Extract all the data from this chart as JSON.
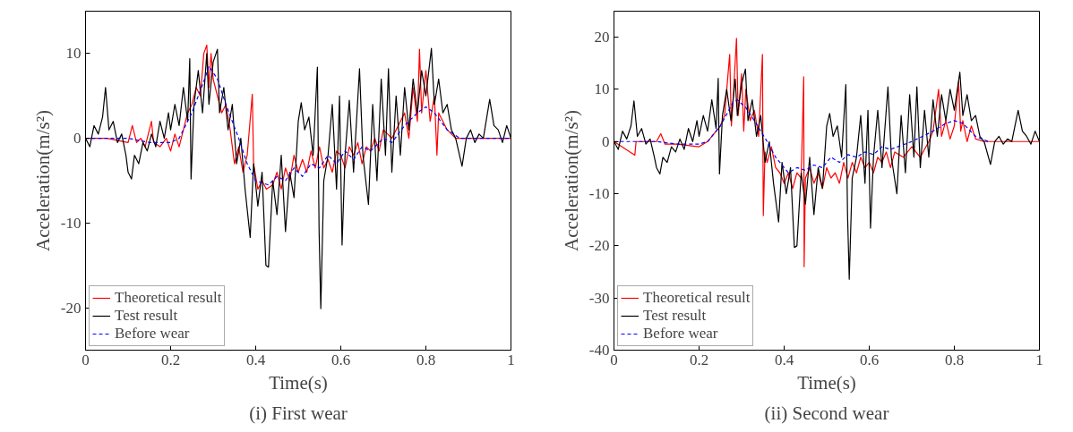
{
  "chart_data": [
    {
      "type": "line",
      "xlabel": "Time(s)",
      "ylabel": "Acceleration(m/s²)",
      "annotations": [
        "(i) First wear"
      ],
      "xlim": [
        0,
        1
      ],
      "ylim": [
        -25,
        15
      ],
      "xticks": [
        0,
        0.2,
        0.4,
        0.6,
        0.8,
        1
      ],
      "yticks": [
        -20,
        -10,
        0,
        10
      ],
      "grid": false,
      "legend": "bottom left",
      "series": [
        {
          "name": "Theoretical result",
          "color": "#ff0000",
          "line_style": "solid",
          "x": [
            0,
            0.05,
            0.1,
            0.11,
            0.12,
            0.13,
            0.14,
            0.155,
            0.16,
            0.175,
            0.19,
            0.2,
            0.21,
            0.22,
            0.23,
            0.24,
            0.25,
            0.26,
            0.27,
            0.278,
            0.285,
            0.29,
            0.295,
            0.3,
            0.31,
            0.32,
            0.33,
            0.34,
            0.35,
            0.36,
            0.37,
            0.38,
            0.392,
            0.395,
            0.405,
            0.415,
            0.425,
            0.44,
            0.45,
            0.46,
            0.47,
            0.48,
            0.49,
            0.5,
            0.51,
            0.52,
            0.53,
            0.54,
            0.55,
            0.56,
            0.57,
            0.58,
            0.59,
            0.6,
            0.61,
            0.62,
            0.63,
            0.64,
            0.65,
            0.66,
            0.67,
            0.68,
            0.69,
            0.7,
            0.72,
            0.74,
            0.75,
            0.76,
            0.77,
            0.78,
            0.785,
            0.79,
            0.8,
            0.81,
            0.82,
            0.826,
            0.83,
            0.84,
            0.85,
            0.87,
            0.9,
            1
          ],
          "values": [
            0,
            0,
            -0.5,
            1.5,
            -0.5,
            0,
            -1,
            2,
            -0.5,
            -1,
            0,
            -1.5,
            0.5,
            -1,
            1,
            3,
            4,
            6,
            5,
            10,
            11,
            6,
            10,
            7,
            5,
            3,
            4,
            1,
            -3,
            -1,
            -4,
            -2,
            5.2,
            -3,
            -6,
            -5,
            -6,
            -5.5,
            -4,
            -6,
            -3.5,
            -5,
            -2,
            -4,
            -2.5,
            -4,
            -1.5,
            -3.5,
            -1,
            -3.5,
            -2.5,
            -4,
            -1.5,
            -2,
            -3.5,
            -1,
            -2,
            -0.5,
            -3,
            -1,
            -1.5,
            0,
            -1.5,
            1,
            0,
            2,
            3,
            0,
            6,
            2,
            10.5,
            3,
            8,
            2,
            5,
            -2,
            3,
            2,
            1,
            0,
            0,
            0
          ]
        },
        {
          "name": "Test result",
          "color": "#000000",
          "line_style": "solid",
          "x": [
            0,
            0.01,
            0.02,
            0.03,
            0.04,
            0.047,
            0.055,
            0.065,
            0.075,
            0.085,
            0.095,
            0.1,
            0.108,
            0.115,
            0.125,
            0.135,
            0.145,
            0.155,
            0.165,
            0.175,
            0.185,
            0.195,
            0.2,
            0.21,
            0.22,
            0.23,
            0.24,
            0.245,
            0.248,
            0.255,
            0.265,
            0.275,
            0.285,
            0.29,
            0.3,
            0.31,
            0.315,
            0.325,
            0.335,
            0.345,
            0.355,
            0.365,
            0.375,
            0.387,
            0.395,
            0.405,
            0.415,
            0.424,
            0.43,
            0.44,
            0.45,
            0.46,
            0.47,
            0.48,
            0.49,
            0.5,
            0.507,
            0.515,
            0.525,
            0.535,
            0.545,
            0.549,
            0.553,
            0.56,
            0.57,
            0.58,
            0.59,
            0.597,
            0.603,
            0.61,
            0.62,
            0.63,
            0.644,
            0.652,
            0.665,
            0.675,
            0.685,
            0.695,
            0.705,
            0.712,
            0.72,
            0.73,
            0.74,
            0.75,
            0.76,
            0.77,
            0.78,
            0.79,
            0.8,
            0.813,
            0.82,
            0.83,
            0.84,
            0.85,
            0.86,
            0.87,
            0.885,
            0.895,
            0.905,
            0.915,
            0.925,
            0.935,
            0.95,
            0.96,
            0.97,
            0.98,
            0.99,
            1
          ],
          "values": [
            0,
            -1,
            1.5,
            0.5,
            2.5,
            6,
            1,
            2,
            -0.5,
            0.5,
            -2,
            -4,
            -4.8,
            -2,
            -3,
            -0.5,
            -1.5,
            0.5,
            -1,
            2,
            0,
            3,
            1,
            4,
            1.5,
            6,
            2,
            9.4,
            -4.8,
            4,
            8,
            3,
            10,
            4,
            9,
            10.5,
            3,
            6,
            1,
            4,
            -3,
            0,
            -6,
            -11.7,
            -3,
            -8,
            -4,
            -15,
            -15.2,
            -5,
            -9,
            -2,
            -11,
            -4,
            -7,
            2,
            4.2,
            1,
            2.5,
            -2,
            8.4,
            -11,
            -20.1,
            -5,
            -2,
            4,
            -6,
            5,
            -12.6,
            -2,
            4.5,
            -4,
            8.2,
            -2,
            -7.8,
            4,
            -5,
            7,
            -2,
            8.2,
            -4,
            5,
            -2,
            6,
            1,
            7,
            3,
            8,
            5,
            10.6,
            4,
            7,
            3,
            4,
            1,
            0,
            -3.3,
            0,
            1,
            -0.5,
            0.5,
            0,
            4.6,
            1.5,
            1,
            -0.5,
            1.5,
            0
          ]
        },
        {
          "name": "Before wear",
          "color": "#0000ff",
          "line_style": "dashed",
          "x": [
            0,
            0.1,
            0.15,
            0.2,
            0.22,
            0.25,
            0.28,
            0.29,
            0.31,
            0.33,
            0.36,
            0.38,
            0.4,
            0.43,
            0.45,
            0.47,
            0.49,
            0.51,
            0.53,
            0.55,
            0.57,
            0.59,
            0.61,
            0.63,
            0.65,
            0.67,
            0.7,
            0.72,
            0.75,
            0.78,
            0.8,
            0.82,
            0.85,
            0.88,
            0.9,
            1
          ],
          "values": [
            0,
            0,
            -0.5,
            -0.5,
            0,
            3,
            7,
            8.5,
            7,
            4,
            0,
            -3,
            -5,
            -5.5,
            -4.5,
            -5,
            -3.5,
            -4.5,
            -3,
            -3.5,
            -2,
            -3,
            -1.5,
            -2.5,
            -1,
            -1.5,
            0,
            -0.5,
            1.5,
            3,
            3.7,
            3,
            1,
            0,
            0,
            0
          ]
        }
      ]
    },
    {
      "type": "line",
      "xlabel": "Time(s)",
      "ylabel": "Acceleration(m/s²)",
      "annotations": [
        "(ii) Second wear"
      ],
      "xlim": [
        0,
        1
      ],
      "ylim": [
        -40,
        25
      ],
      "xticks": [
        0,
        0.2,
        0.4,
        0.6,
        0.8,
        1
      ],
      "yticks": [
        -40,
        -30,
        -20,
        -10,
        0,
        10,
        20
      ],
      "grid": false,
      "legend": "bottom left",
      "series": [
        {
          "name": "Theoretical result",
          "color": "#ff0000",
          "line_style": "solid",
          "x": [
            0,
            0.049,
            0.052,
            0.1,
            0.11,
            0.12,
            0.15,
            0.2,
            0.22,
            0.25,
            0.26,
            0.272,
            0.276,
            0.28,
            0.288,
            0.292,
            0.3,
            0.305,
            0.31,
            0.32,
            0.33,
            0.34,
            0.349,
            0.351,
            0.355,
            0.36,
            0.37,
            0.38,
            0.39,
            0.4,
            0.41,
            0.42,
            0.43,
            0.44,
            0.446,
            0.447,
            0.45,
            0.46,
            0.47,
            0.48,
            0.49,
            0.5,
            0.51,
            0.52,
            0.53,
            0.54,
            0.55,
            0.56,
            0.57,
            0.58,
            0.59,
            0.6,
            0.61,
            0.62,
            0.63,
            0.64,
            0.65,
            0.66,
            0.68,
            0.7,
            0.72,
            0.74,
            0.75,
            0.763,
            0.77,
            0.78,
            0.79,
            0.8,
            0.81,
            0.815,
            0.82,
            0.83,
            0.84,
            0.85,
            0.87,
            0.9,
            1
          ],
          "values": [
            0,
            -2.6,
            0,
            0,
            1.5,
            -0.5,
            -0.5,
            -1,
            0,
            3,
            5,
            16.7,
            3,
            8,
            19.8,
            5,
            13,
            2,
            10,
            4,
            6,
            1,
            16.7,
            -14.2,
            -2,
            -4,
            -1,
            -5,
            -6,
            -8,
            -6,
            -9,
            -6,
            -7,
            12.4,
            -24,
            -7,
            -5,
            -8,
            -6,
            -9,
            -5,
            -7,
            -6,
            -8,
            -4,
            -7,
            -4,
            -6,
            -3,
            -5,
            -4,
            -6,
            -3,
            -4,
            -2,
            -5,
            -2,
            -3,
            -1,
            -3,
            0,
            2,
            10,
            1,
            4,
            0.5,
            3,
            11.5,
            2,
            4,
            0,
            3,
            0.5,
            0,
            0,
            0
          ]
        },
        {
          "name": "Test result",
          "color": "#000000",
          "line_style": "solid",
          "x": [
            0,
            0.01,
            0.02,
            0.03,
            0.04,
            0.047,
            0.055,
            0.065,
            0.075,
            0.085,
            0.095,
            0.1,
            0.108,
            0.115,
            0.125,
            0.135,
            0.145,
            0.155,
            0.165,
            0.175,
            0.185,
            0.195,
            0.2,
            0.21,
            0.22,
            0.23,
            0.24,
            0.245,
            0.248,
            0.255,
            0.265,
            0.275,
            0.285,
            0.29,
            0.3,
            0.309,
            0.315,
            0.325,
            0.335,
            0.345,
            0.355,
            0.365,
            0.375,
            0.387,
            0.395,
            0.405,
            0.415,
            0.424,
            0.43,
            0.44,
            0.45,
            0.46,
            0.47,
            0.48,
            0.49,
            0.5,
            0.507,
            0.515,
            0.525,
            0.535,
            0.545,
            0.549,
            0.553,
            0.56,
            0.57,
            0.58,
            0.59,
            0.597,
            0.603,
            0.61,
            0.62,
            0.63,
            0.644,
            0.652,
            0.665,
            0.675,
            0.685,
            0.695,
            0.705,
            0.712,
            0.72,
            0.73,
            0.74,
            0.75,
            0.76,
            0.77,
            0.78,
            0.79,
            0.8,
            0.813,
            0.82,
            0.83,
            0.84,
            0.85,
            0.86,
            0.87,
            0.885,
            0.895,
            0.905,
            0.915,
            0.925,
            0.935,
            0.95,
            0.96,
            0.97,
            0.98,
            0.99,
            1
          ],
          "values": [
            0,
            -1.5,
            2,
            0.5,
            3,
            7.8,
            1,
            2.5,
            -0.5,
            0.5,
            -3,
            -5,
            -6.2,
            -3,
            -4,
            -1,
            -2,
            0.5,
            -1.5,
            2.5,
            0,
            4,
            1,
            5,
            2,
            8,
            2.5,
            12.1,
            -6.2,
            5,
            10,
            4,
            12,
            5,
            11,
            13.9,
            4,
            8,
            1,
            5,
            -4,
            0,
            -8,
            -15.4,
            -4,
            -10,
            -5,
            -20.3,
            -20,
            -6,
            -12,
            -3,
            -14,
            -5,
            -9,
            3,
            5.4,
            1,
            3,
            -3,
            10.9,
            -14,
            -26.4,
            -7,
            -3,
            5,
            -8,
            6,
            -16.6,
            -3,
            6,
            -5,
            10.5,
            -3,
            -10,
            5,
            -6,
            9,
            -3,
            10.5,
            -5,
            6,
            -3,
            8,
            1,
            9,
            4,
            10,
            6,
            13.3,
            5,
            9,
            4,
            5,
            1,
            0,
            -4.4,
            0,
            1,
            -0.5,
            0.5,
            0,
            6,
            2,
            1,
            -0.5,
            2,
            0
          ]
        },
        {
          "name": "Before wear",
          "color": "#0000ff",
          "line_style": "dashed",
          "x": [
            0,
            0.1,
            0.15,
            0.2,
            0.22,
            0.25,
            0.28,
            0.29,
            0.31,
            0.33,
            0.36,
            0.38,
            0.41,
            0.43,
            0.45,
            0.47,
            0.49,
            0.51,
            0.53,
            0.55,
            0.57,
            0.59,
            0.61,
            0.63,
            0.65,
            0.7,
            0.75,
            0.78,
            0.8,
            0.82,
            0.85,
            0.88
          ],
          "values": [
            0,
            0,
            -0.5,
            -0.5,
            0,
            3,
            7.5,
            8,
            6.5,
            4,
            0,
            -3,
            -6,
            -5,
            -5.5,
            -4.5,
            -5,
            -3,
            -4,
            -2.5,
            -3,
            -2,
            -2.5,
            -1,
            -1.5,
            0,
            2,
            3.5,
            4,
            3.5,
            1,
            0
          ]
        }
      ]
    }
  ]
}
